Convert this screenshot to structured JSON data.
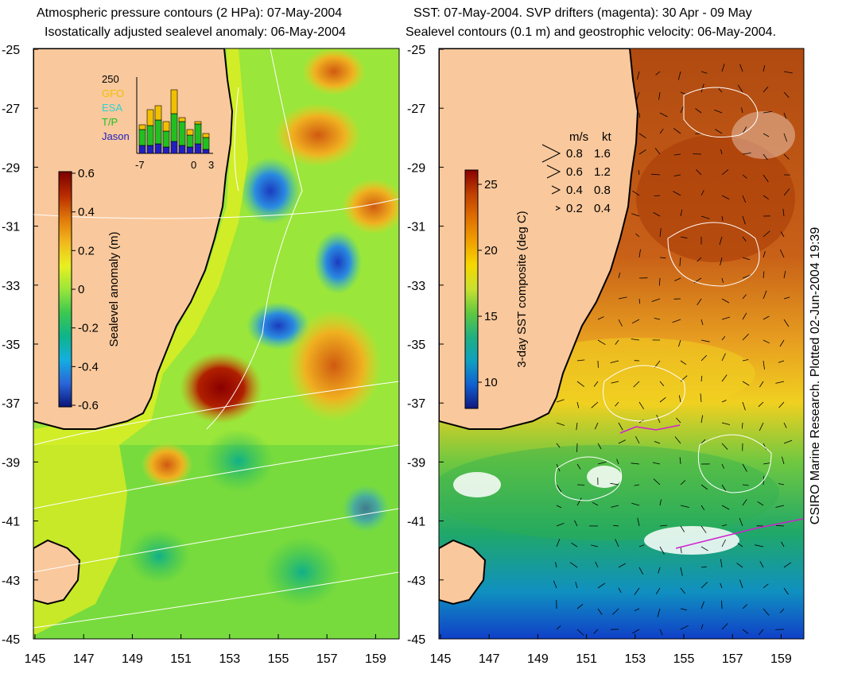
{
  "left_map": {
    "title_line1": "Atmospheric pressure contours (2 HPa): 07-May-2004",
    "title_line2": "Isostatically adjusted sealevel anomaly: 06-May-2004",
    "colorbar": {
      "label": "Sealevel anomaly (m)",
      "ticks": [
        "0.6",
        "0.4",
        "0.2",
        "0",
        "-0.2",
        "-0.4",
        "-0.6"
      ],
      "colors": [
        "#7a0000",
        "#b82b00",
        "#e0780a",
        "#f2b81e",
        "#e8f020",
        "#9ae63a",
        "#3cc850",
        "#0eb48a",
        "#14aee0",
        "#2a66d8",
        "#0a1478"
      ]
    },
    "inset": {
      "ymax_label": "250",
      "satellites": [
        {
          "name": "GFO",
          "color": "#f0c000"
        },
        {
          "name": "ESA",
          "color": "#30d0d0"
        },
        {
          "name": "T/P",
          "color": "#20c020"
        },
        {
          "name": "Jason",
          "color": "#2020c0"
        }
      ],
      "x_ticks": [
        "-7",
        "0",
        "3"
      ]
    }
  },
  "right_map": {
    "title_line1": "SST: 07-May-2004. SVP drifters (magenta): 30 Apr - 09 May",
    "title_line2": "Sealevel contours (0.1 m) and geostrophic velocity: 06-May-2004.",
    "colorbar": {
      "label": "3-day SST composite (deg C)",
      "ticks": [
        "25",
        "20",
        "15",
        "10"
      ],
      "colors": [
        "#8a0000",
        "#c04000",
        "#e07000",
        "#f0a000",
        "#f6d800",
        "#c8e030",
        "#60c840",
        "#20b080",
        "#10a0c0",
        "#1060d0",
        "#101880"
      ]
    },
    "velocity_legend": {
      "header_ms": "m/s",
      "header_kt": "kt",
      "rows": [
        {
          "ms": "0.8",
          "kt": "1.6"
        },
        {
          "ms": "0.6",
          "kt": "1.2"
        },
        {
          "ms": "0.4",
          "kt": "0.8"
        },
        {
          "ms": "0.2",
          "kt": "0.4"
        }
      ]
    },
    "credit": "CSIRO Marine Research. Plotted 02-Jun-2004 19:39"
  },
  "axes": {
    "lat_labels": [
      "-25",
      "-27",
      "-29",
      "-31",
      "-33",
      "-35",
      "-37",
      "-39",
      "-41",
      "-43",
      "-45"
    ],
    "lon_labels": [
      "145",
      "147",
      "149",
      "151",
      "153",
      "155",
      "157",
      "159"
    ]
  },
  "colors": {
    "land": "#f9c89c",
    "coast": "#000000"
  }
}
